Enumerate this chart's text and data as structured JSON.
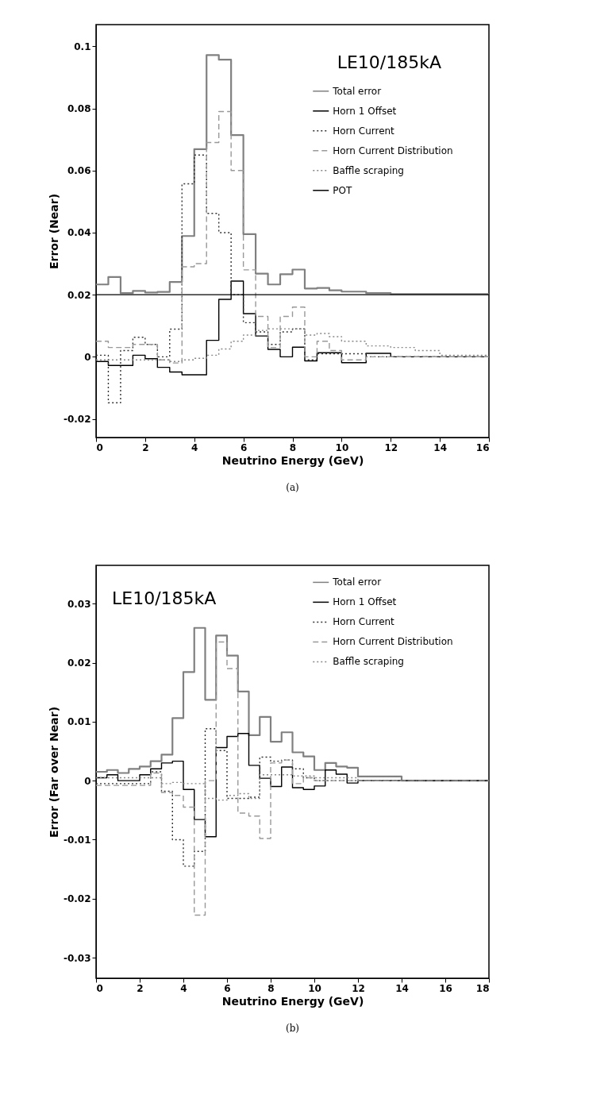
{
  "chart_data": [
    {
      "type": "step",
      "xlabel": "Neutrino Energy (GeV)",
      "ylabel": "Error (Near)",
      "annotations": [
        "LE10/185kA",
        "(a)"
      ],
      "x": [
        0,
        0.5,
        1,
        1.5,
        2,
        2.5,
        3,
        3.5,
        4,
        4.5,
        5,
        5.5,
        6,
        6.5,
        7,
        7.5,
        8,
        8.5,
        9,
        9.5,
        10,
        10.5,
        11,
        11.5,
        12,
        12.5,
        13,
        13.5,
        14,
        14.5,
        15,
        15.5,
        16
      ],
      "series": [
        {
          "name": "Total error",
          "color": "#808080",
          "line_style": "solid",
          "values": [
            0.0233,
            0.0257,
            0.0205,
            0.0212,
            0.0207,
            0.0209,
            0.0241,
            0.0389,
            0.0669,
            0.0972,
            0.0957,
            0.0714,
            0.0395,
            0.0268,
            0.0233,
            0.0266,
            0.0281,
            0.022,
            0.0222,
            0.0214,
            0.021,
            0.021,
            0.0205,
            0.0205,
            0.0202,
            0.0202,
            0.0202,
            0.0202,
            0.0202,
            0.0202,
            0.0202,
            0.0202,
            0.0202
          ]
        },
        {
          "name": "Horn 1 Offset",
          "color": "#000000",
          "line_style": "solid",
          "values": [
            -0.0015,
            -0.0028,
            -0.0028,
            0.0005,
            -0.0006,
            -0.0034,
            -0.0049,
            -0.0058,
            -0.0058,
            0.0053,
            0.0185,
            0.0244,
            0.0139,
            0.0067,
            0.0024,
            0,
            0.0031,
            -0.0013,
            0.0013,
            0.0013,
            -0.0019,
            -0.0019,
            0.0011,
            0.0011,
            0,
            0,
            0,
            0,
            0,
            0,
            0,
            0,
            0
          ]
        },
        {
          "name": "Horn Current",
          "color": "#333333",
          "line_style": "dotted",
          "values": [
            0.0005,
            -0.0148,
            0.002,
            0.0063,
            0.004,
            0,
            0.0089,
            0.0557,
            0.065,
            0.0462,
            0.04,
            0.02,
            0.011,
            0.008,
            0.004,
            0.008,
            0.009,
            -0.001,
            0.001,
            0.001,
            0.001,
            0.001,
            0,
            0,
            0,
            0,
            0,
            0,
            0,
            0,
            0,
            0,
            0
          ]
        },
        {
          "name": "Horn Current Distribution",
          "color": "#999999",
          "line_style": "dashed",
          "values": [
            0.005,
            0.003,
            0.003,
            0.004,
            0.004,
            -0.001,
            -0.002,
            0.029,
            0.03,
            0.069,
            0.079,
            0.06,
            0.028,
            0.013,
            0.003,
            0.013,
            0.016,
            0,
            0.005,
            0.002,
            -0.001,
            -0.001,
            0,
            0,
            0,
            0,
            0,
            0,
            0,
            0,
            0,
            0,
            0
          ]
        },
        {
          "name": "Baffle scraping",
          "color": "#888888",
          "line_style": "dotted",
          "values": [
            -0.001,
            -0.001,
            -0.001,
            -0.001,
            -0.001,
            -0.001,
            -0.0015,
            -0.001,
            -0.0005,
            0.0005,
            0.0025,
            0.005,
            0.007,
            0.0085,
            0.009,
            0.009,
            0.009,
            0.007,
            0.0075,
            0.0065,
            0.005,
            0.005,
            0.0035,
            0.0035,
            0.003,
            0.003,
            0.002,
            0.002,
            0.0005,
            0.0005,
            0.0005,
            0.0005,
            0.0005
          ]
        },
        {
          "name": "POT",
          "color": "#000000",
          "line_style": "solid",
          "values": [
            0.02,
            0.02,
            0.02,
            0.02,
            0.02,
            0.02,
            0.02,
            0.02,
            0.02,
            0.02,
            0.02,
            0.02,
            0.02,
            0.02,
            0.02,
            0.02,
            0.02,
            0.02,
            0.02,
            0.02,
            0.02,
            0.02,
            0.02,
            0.02,
            0.02,
            0.02,
            0.02,
            0.02,
            0.02,
            0.02,
            0.02,
            0.02,
            0.02
          ]
        }
      ],
      "xlim": [
        0,
        16
      ],
      "xticks": [
        0,
        2,
        4,
        6,
        8,
        10,
        12,
        14,
        16
      ],
      "ylim": [
        -0.026,
        0.107
      ],
      "yticks": [
        -0.02,
        0,
        0.02,
        0.04,
        0.06,
        0.08,
        0.1
      ],
      "legend": "top right"
    },
    {
      "type": "step",
      "xlabel": "Neutrino Energy (GeV)",
      "ylabel": "Error (Far over Near)",
      "annotations": [
        "LE10/185kA",
        "(b)"
      ],
      "x": [
        0,
        0.5,
        1,
        1.5,
        2,
        2.5,
        3,
        3.5,
        4,
        4.5,
        5,
        5.5,
        6,
        6.5,
        7,
        7.5,
        8,
        8.5,
        9,
        9.5,
        10,
        10.5,
        11,
        11.5,
        12,
        12.5,
        13,
        13.5,
        14,
        14.5,
        15,
        15.5,
        16,
        16.5,
        17,
        17.5,
        18
      ],
      "series": [
        {
          "name": "Total error",
          "color": "#808080",
          "line_style": "solid",
          "values": [
            0.0015,
            0.0018,
            0.0013,
            0.002,
            0.0024,
            0.0033,
            0.0044,
            0.0106,
            0.0184,
            0.0259,
            0.0137,
            0.0246,
            0.0212,
            0.0151,
            0.0077,
            0.0108,
            0.0066,
            0.0082,
            0.0048,
            0.0041,
            0.0018,
            0.003,
            0.0024,
            0.0022,
            0.0007,
            0.0007,
            0.0007,
            0.0007,
            0,
            0,
            0,
            0,
            0,
            0,
            0,
            0,
            0
          ]
        },
        {
          "name": "Horn 1 Offset",
          "color": "#000000",
          "line_style": "solid",
          "values": [
            0.0005,
            0.001,
            0,
            0,
            0.001,
            0.002,
            0.003,
            0.0033,
            -0.0015,
            -0.0066,
            -0.0095,
            0.0056,
            0.0075,
            0.008,
            0.0026,
            0.0004,
            -0.001,
            0.0023,
            -0.0012,
            -0.0015,
            -0.0009,
            0.0018,
            0.0011,
            -0.0004,
            0,
            0,
            0,
            0,
            0,
            0,
            0,
            0,
            0,
            0,
            0,
            0,
            0
          ]
        },
        {
          "name": "Horn Current",
          "color": "#333333",
          "line_style": "dotted",
          "values": [
            -0.0005,
            -0.0005,
            -0.0005,
            -0.0005,
            -0.0005,
            0.0015,
            -0.0018,
            -0.01,
            -0.0145,
            -0.012,
            0.0088,
            0.0051,
            -0.003,
            -0.003,
            -0.0028,
            0.004,
            0.0033,
            0.0035,
            0.002,
            0.0005,
            0,
            0,
            0,
            0,
            0,
            0,
            0,
            0,
            0,
            0,
            0,
            0,
            0,
            0,
            0,
            0,
            0
          ]
        },
        {
          "name": "Horn Current Distribution",
          "color": "#999999",
          "line_style": "dashed",
          "values": [
            -0.0008,
            -0.0008,
            -0.0008,
            -0.0008,
            -0.0008,
            0.0013,
            -0.002,
            -0.0025,
            -0.0045,
            -0.0228,
            0,
            0.0235,
            0.019,
            -0.0055,
            -0.006,
            -0.0098,
            0.003,
            0.0035,
            -0.0005,
            0.0005,
            0,
            0,
            0,
            0,
            0,
            0,
            0,
            0,
            0,
            0,
            0,
            0,
            0,
            0,
            0,
            0,
            0
          ]
        },
        {
          "name": "Baffle scraping",
          "color": "#888888",
          "line_style": "dotted",
          "values": [
            0.0005,
            0.0005,
            0.0005,
            0.0005,
            0.0005,
            0.0005,
            -0.0005,
            -0.0003,
            -0.0005,
            -0.0005,
            -0.003,
            -0.0033,
            -0.0025,
            -0.0022,
            -0.003,
            0.001,
            0.001,
            0.001,
            0.0008,
            0.0008,
            0.0005,
            0.0005,
            0.0005,
            0.0005,
            0,
            0,
            0,
            0,
            0,
            0,
            0,
            0,
            0,
            0,
            0,
            0,
            0
          ]
        }
      ],
      "xlim": [
        0,
        18
      ],
      "xticks": [
        0,
        2,
        4,
        6,
        8,
        10,
        12,
        14,
        16,
        18
      ],
      "ylim": [
        -0.0335,
        0.0365
      ],
      "yticks": [
        -0.03,
        -0.02,
        -0.01,
        0,
        0.01,
        0.02,
        0.03
      ],
      "legend": "top right"
    }
  ]
}
